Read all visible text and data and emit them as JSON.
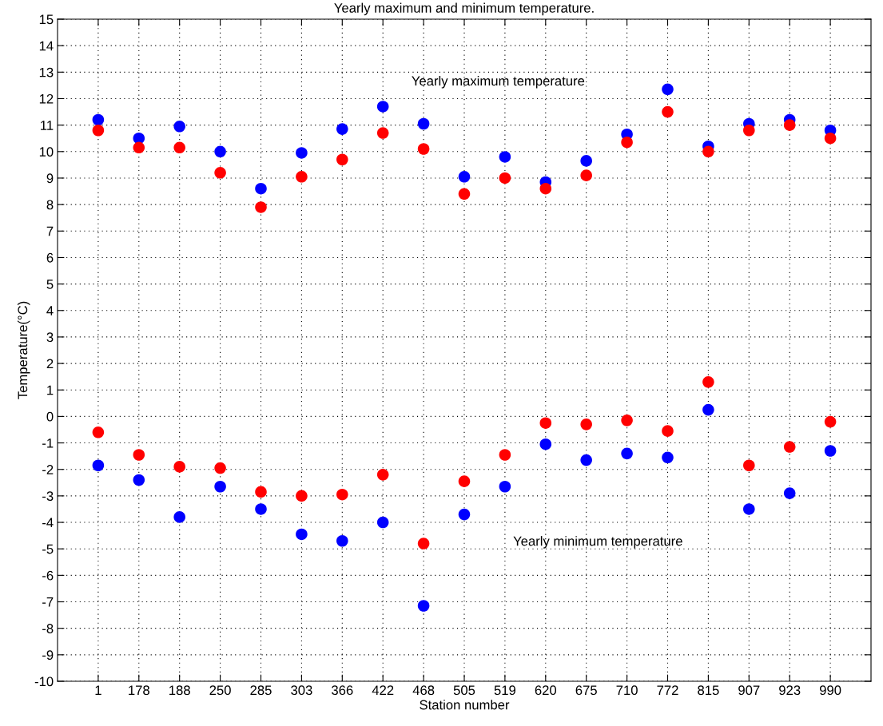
{
  "chart_data": {
    "type": "scatter",
    "title": "Yearly maximum and minimum temperature.",
    "xlabel": "Station number",
    "ylabel": "Temperature(°C)",
    "categories": [
      "1",
      "178",
      "188",
      "250",
      "285",
      "303",
      "366",
      "422",
      "468",
      "505",
      "519",
      "620",
      "675",
      "710",
      "772",
      "815",
      "907",
      "923",
      "990"
    ],
    "series": [
      {
        "color": "#0000ff",
        "values": [
          11.2,
          10.5,
          10.95,
          10.0,
          8.6,
          9.95,
          10.85,
          11.7,
          11.05,
          9.05,
          9.8,
          8.85,
          9.65,
          10.65,
          12.35,
          10.2,
          11.05,
          11.2,
          10.8
        ]
      },
      {
        "color": "#ff0000",
        "values": [
          10.8,
          10.15,
          10.15,
          9.2,
          7.9,
          9.05,
          9.7,
          10.7,
          10.1,
          8.4,
          9.0,
          8.6,
          9.1,
          10.35,
          11.5,
          10.0,
          10.8,
          11.0,
          10.5
        ]
      },
      {
        "color": "#ff0000",
        "values": [
          -0.6,
          -1.45,
          -1.9,
          -1.95,
          -2.85,
          -3.0,
          -2.95,
          -2.2,
          -4.8,
          -2.45,
          -1.45,
          -0.25,
          -0.3,
          -0.15,
          -0.55,
          1.3,
          -1.85,
          -1.15,
          -0.2
        ]
      },
      {
        "color": "#0000ff",
        "values": [
          -1.85,
          -2.4,
          -3.8,
          -2.65,
          -3.5,
          -4.45,
          -4.7,
          -4.0,
          -7.15,
          -3.7,
          -2.65,
          -1.05,
          -1.65,
          -1.4,
          -1.55,
          0.25,
          -3.5,
          -2.9,
          -1.3
        ]
      }
    ],
    "annotations": [
      "Yearly maximum temperature",
      "Yearly minimum temperature"
    ],
    "ylim": [
      -10,
      15
    ],
    "yticks": [
      -10,
      -9,
      -8,
      -7,
      -6,
      -5,
      -4,
      -3,
      -2,
      -1,
      0,
      1,
      2,
      3,
      4,
      5,
      6,
      7,
      8,
      9,
      10,
      11,
      12,
      13,
      14,
      15
    ],
    "grid": true,
    "marker": "circle",
    "legend": false
  }
}
